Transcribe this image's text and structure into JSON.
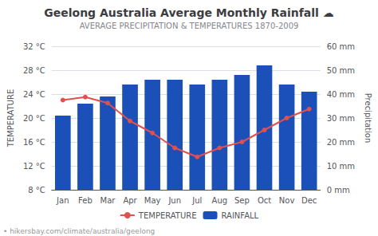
{
  "chart_data": {
    "type": "bar",
    "title": "Geelong Australia Average Monthly Rainfall ☁",
    "subtitle": "AVERAGE PRECIPITATION & TEMPERATURES 1870-2009",
    "ylabel": "TEMPERATURE",
    "y2label": "Precipitation",
    "annotations": [
      "• hikersbay.com/climate/australia/geelong"
    ],
    "categories": [
      "Jan",
      "Feb",
      "Mar",
      "Apr",
      "May",
      "Jun",
      "Jul",
      "Aug",
      "Sep",
      "Oct",
      "Nov",
      "Dec"
    ],
    "series": [
      {
        "name": "TEMPERATURE",
        "type": "line",
        "marker": "circle",
        "color": "#e05050",
        "values": [
          23.0,
          23.5,
          22.5,
          19.5,
          17.5,
          15.0,
          13.5,
          15.0,
          16.0,
          18.0,
          20.0,
          21.5
        ]
      },
      {
        "name": "RAINFALL",
        "type": "bar",
        "axis": "y2",
        "color": "#1a50b8",
        "values": [
          31,
          36,
          39,
          44,
          46,
          46,
          44,
          46,
          48,
          52,
          44,
          41
        ]
      }
    ],
    "ylim": [
      8,
      32
    ],
    "yticks": [
      {
        "value": 8,
        "label": "8 °C"
      },
      {
        "value": 12,
        "label": "12 °C"
      },
      {
        "value": 16,
        "label": "16 °C"
      },
      {
        "value": 20,
        "label": "20 °C"
      },
      {
        "value": 24,
        "label": "24 °C"
      },
      {
        "value": 28,
        "label": "28 °C"
      },
      {
        "value": 32,
        "label": "32 °C"
      }
    ],
    "y2lim": [
      0,
      60
    ],
    "y2ticks": [
      {
        "value": 0,
        "label": "0 mm"
      },
      {
        "value": 10,
        "label": "10 mm"
      },
      {
        "value": 20,
        "label": "20 mm"
      },
      {
        "value": 30,
        "label": "30 mm"
      },
      {
        "value": 40,
        "label": "40 mm"
      },
      {
        "value": 50,
        "label": "50 mm"
      },
      {
        "value": 60,
        "label": "60 mm"
      }
    ],
    "grid": true,
    "legend": "bottom"
  }
}
